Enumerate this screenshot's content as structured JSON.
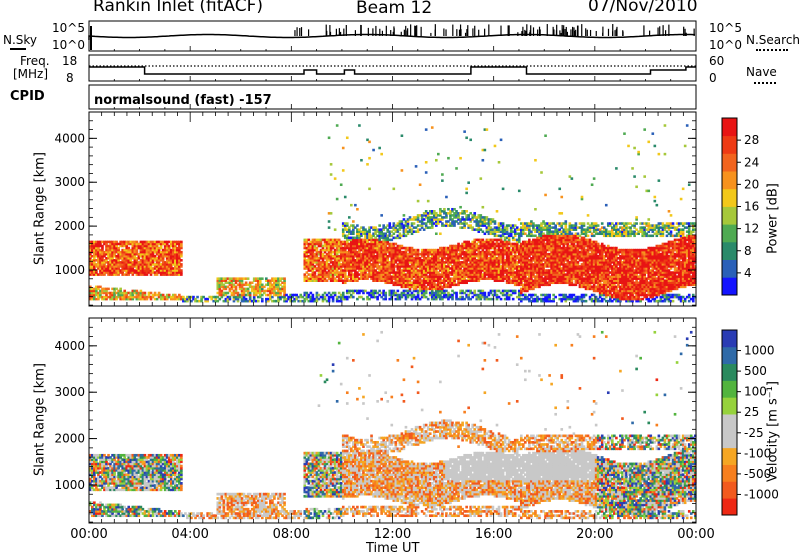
{
  "header": {
    "radar": "Rankin Inlet (fitACF)",
    "beam": "Beam 12",
    "date": "07/Nov/2010"
  },
  "top_panels": {
    "nsky_label": "N.Sky",
    "nsky_ticks": [
      "10^5",
      "10^0"
    ],
    "nsearch_label": "N.Search",
    "nsearch_ticks": [
      "10^5",
      "10^0"
    ],
    "freq_label_1": "Freq.",
    "freq_label_2": "[MHz]",
    "freq_ticks": [
      "18",
      "8"
    ],
    "nave_label": "Nave",
    "nave_ticks": [
      "60",
      "0"
    ],
    "cpid_label": "CPID",
    "cpid_text": "normalsound (fast) -157"
  },
  "chart_data": [
    {
      "type": "heatmap",
      "name": "power",
      "ylabel": "Slant Range [km]",
      "ylim": [
        180,
        4600
      ],
      "yticks": [
        1000,
        2000,
        3000,
        4000
      ],
      "xlim": [
        0,
        24
      ],
      "colorbar": {
        "label": "Power [dB]",
        "ticks": [
          4,
          8,
          12,
          16,
          20,
          24,
          28
        ],
        "range": [
          0,
          32
        ],
        "colors": [
          "#1414ff",
          "#2a60b8",
          "#2a8a6a",
          "#4faa52",
          "#a6c83a",
          "#f2c81a",
          "#f7921e",
          "#f2641e",
          "#ee3a14",
          "#e81414"
        ]
      }
    },
    {
      "type": "heatmap",
      "name": "velocity",
      "ylabel": "Slant Range [km]",
      "ylim": [
        180,
        4600
      ],
      "yticks": [
        1000,
        2000,
        3000,
        4000
      ],
      "xlim": [
        0,
        24
      ],
      "xticks": [
        "00:00",
        "04:00",
        "08:00",
        "12:00",
        "16:00",
        "20:00",
        "00:00"
      ],
      "xlabel": "Time UT",
      "colorbar": {
        "label": "Velocity [m s⁻¹]",
        "ticks": [
          "1000",
          "500",
          "100",
          "25",
          "-25",
          "-100",
          "-500",
          "-1000"
        ],
        "colors": [
          "#2a3cb4",
          "#2f6aa8",
          "#2a8a5e",
          "#52b43e",
          "#96d23c",
          "#c8c8c8",
          "#c8c8c8",
          "#f5a623",
          "#f77f1e",
          "#f25a1e",
          "#ee2814"
        ]
      }
    }
  ]
}
